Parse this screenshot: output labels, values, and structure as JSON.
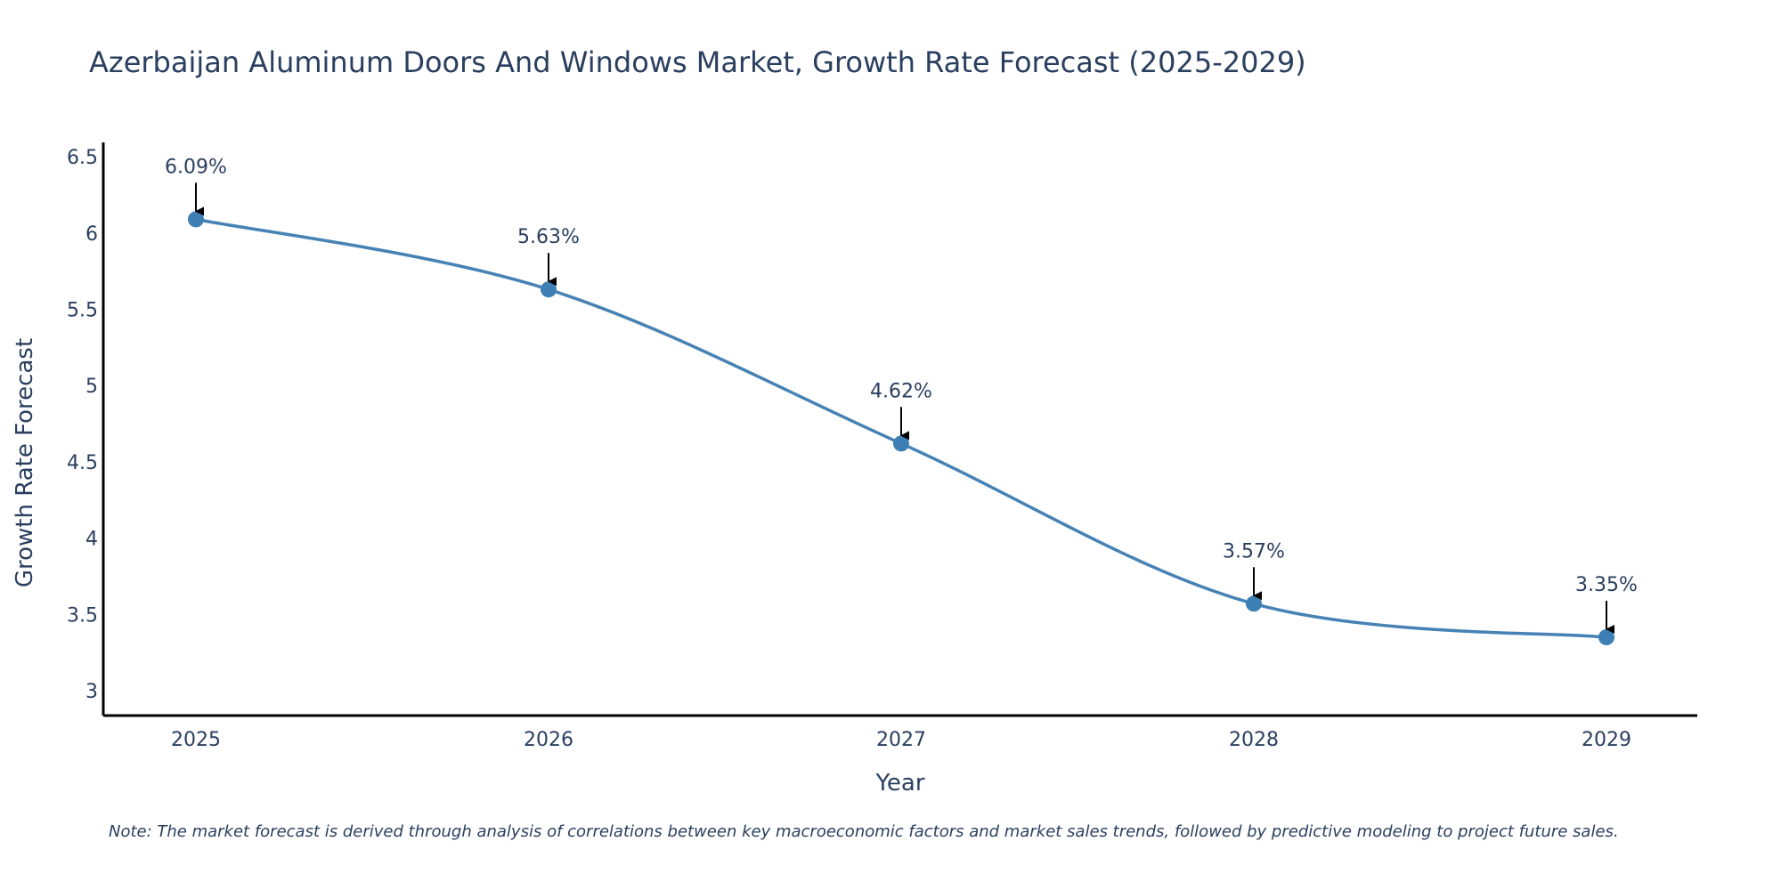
{
  "chart_data": {
    "type": "line",
    "title": "Azerbaijan Aluminum Doors And Windows Market, Growth Rate Forecast (2025-2029)",
    "xlabel": "Year",
    "ylabel": "Growth Rate Forecast",
    "categories": [
      "2025",
      "2026",
      "2027",
      "2028",
      "2029"
    ],
    "values": [
      6.09,
      5.63,
      4.62,
      3.57,
      3.35
    ],
    "data_labels": [
      "6.09%",
      "5.63%",
      "4.62%",
      "3.57%",
      "3.35%"
    ],
    "yticks": [
      3,
      3.5,
      4,
      4.5,
      5,
      5.5,
      6,
      6.5
    ],
    "ytick_labels": [
      "3",
      "3.5",
      "4",
      "4.5",
      "5",
      "5.5",
      "6",
      "6.5"
    ],
    "ylim": [
      2.84,
      6.59
    ],
    "line_shape": "spline",
    "grid": false,
    "line_color": "#4682b4",
    "marker_color": "#3d7fb5",
    "annotation_color": "#000000",
    "text_color": "#2a3f5f",
    "axis_color": "#000000",
    "note": "Note: The market forecast is derived through analysis of correlations between key macroeconomic factors and market sales trends, followed by predictive modeling to project future sales."
  }
}
